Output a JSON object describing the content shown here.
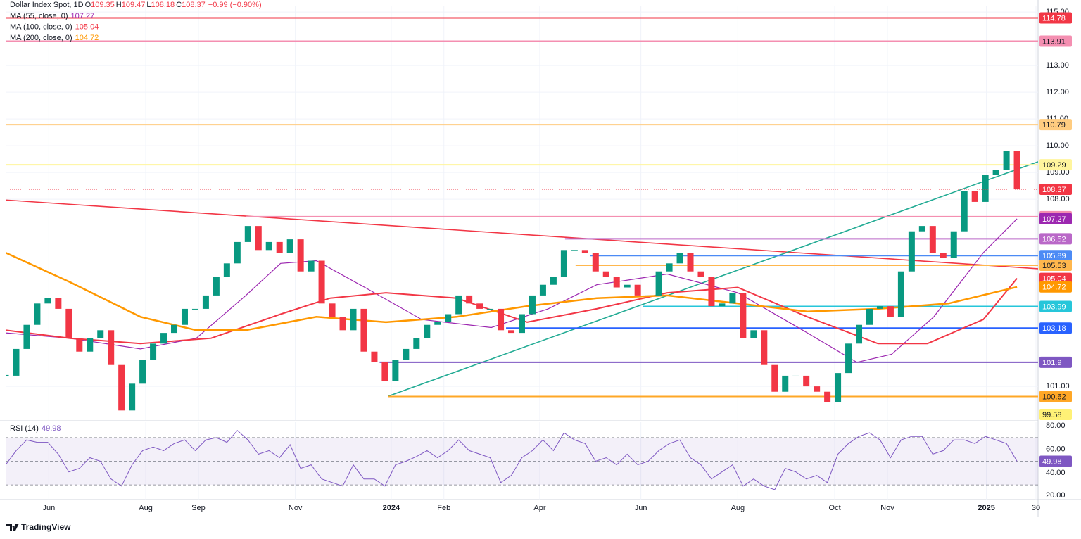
{
  "chart_data": [
    {
      "type": "line",
      "title": "Dollar Index Spot, 1D",
      "ohlc_labels": [
        "O",
        "H",
        "L",
        "C"
      ],
      "ohlc": [
        109.35,
        109.47,
        108.18,
        108.37
      ],
      "change": "−0.99 (−0.90%)",
      "up_color": "#089981",
      "down_color": "#f23645",
      "grid": true,
      "xlim": [
        0,
        98
      ],
      "xticks": [
        {
          "value": 4.1,
          "label": "Jun"
        },
        {
          "value": 13.3,
          "label": "Aug"
        },
        {
          "value": 18.3,
          "label": "Sep"
        },
        {
          "value": 27.5,
          "label": "Nov"
        },
        {
          "value": 36.6,
          "label": "2024"
        },
        {
          "value": 41.6,
          "label": "Feb"
        },
        {
          "value": 50.7,
          "label": "Apr"
        },
        {
          "value": 60.3,
          "label": "Jun"
        },
        {
          "value": 69.5,
          "label": "Aug"
        },
        {
          "value": 78.7,
          "label": "Oct"
        },
        {
          "value": 83.7,
          "label": "Nov"
        },
        {
          "value": 93.1,
          "label": "2025"
        },
        {
          "value": 97.8,
          "label": "30"
        }
      ],
      "ylim": [
        99.74,
        115.24
      ],
      "yticks": [
        {
          "value": 115,
          "label": "115.00"
        },
        {
          "value": 113,
          "label": "113.00"
        },
        {
          "value": 112,
          "label": "112.00"
        },
        {
          "value": 111,
          "label": "111.00"
        },
        {
          "value": 110,
          "label": "110.00"
        },
        {
          "value": 109,
          "label": "109.00"
        },
        {
          "value": 108,
          "label": "108.00"
        },
        {
          "value": 101,
          "label": "101.00"
        }
      ],
      "values": [
        101.4,
        102.4,
        103.3,
        104.1,
        104.3,
        103.9,
        102.8,
        102.3,
        102.8,
        103.1,
        101.8,
        100.1,
        101.1,
        102.0,
        102.6,
        103.0,
        103.3,
        103.9,
        103.9,
        104.4,
        105.1,
        105.6,
        106.4,
        107.0,
        106.1,
        106.4,
        106.0,
        106.5,
        105.3,
        105.7,
        104.1,
        103.6,
        103.1,
        103.9,
        102.3,
        101.9,
        101.2,
        102.0,
        102.4,
        102.8,
        103.3,
        103.4,
        103.7,
        104.4,
        104.1,
        103.9,
        103.9,
        103.1,
        103.0,
        103.7,
        104.4,
        104.8,
        105.1,
        106.1,
        106.1,
        106.0,
        105.3,
        105.1,
        104.7,
        104.8,
        104.4,
        104.4,
        105.3,
        105.6,
        106.0,
        105.3,
        105.1,
        104.0,
        104.1,
        104.5,
        102.8,
        103.1,
        101.8,
        100.8,
        101.4,
        101.4,
        101.0,
        100.8,
        100.4,
        101.5,
        102.6,
        103.3,
        103.9,
        104.0,
        103.6,
        105.3,
        106.8,
        107.0,
        106.0,
        105.8,
        106.8,
        108.3,
        107.9,
        108.9,
        109.1,
        109.8,
        108.37
      ],
      "moving_averages": [
        {
          "name": "MA (55, close, 0)",
          "color": "#9c27b0",
          "x": [
            0,
            6.1,
            12.8,
            18.1,
            22.8,
            26.1,
            29.5,
            34.1,
            39.5,
            46.1,
            51.5,
            56.1,
            62.8,
            69.5,
            76.1,
            80.8,
            84.1,
            88.1,
            92.8,
            96
          ],
          "values": [
            103.0,
            102.8,
            102.4,
            102.8,
            104.4,
            105.6,
            105.7,
            104.7,
            103.5,
            103.2,
            103.9,
            104.8,
            105.2,
            104.5,
            103.0,
            101.9,
            102.2,
            103.6,
            106.0,
            107.27
          ]
        },
        {
          "name": "MA (100, close, 0)",
          "color": "#f23645",
          "x": [
            0,
            6.1,
            12.8,
            19.5,
            26.1,
            30.8,
            36.1,
            42.8,
            49.5,
            56.1,
            62.8,
            69.5,
            76.1,
            82.8,
            87.5,
            92.8,
            96
          ],
          "values": [
            103.1,
            102.8,
            102.6,
            102.8,
            103.7,
            104.3,
            104.5,
            104.3,
            103.4,
            103.9,
            104.5,
            104.7,
            103.6,
            102.6,
            102.6,
            103.5,
            105.04
          ]
        },
        {
          "name": "MA (200, close, 0)",
          "color": "#ff9800",
          "x": [
            0,
            6.1,
            12.8,
            18.1,
            22.8,
            29.5,
            36.1,
            42.8,
            49.5,
            56.1,
            62.8,
            69.5,
            76.1,
            82.8,
            89.5,
            96
          ],
          "values": [
            106.0,
            104.9,
            103.6,
            103.1,
            103.1,
            103.6,
            103.4,
            103.6,
            104.0,
            104.3,
            104.4,
            104.1,
            103.8,
            103.9,
            104.1,
            104.72
          ]
        }
      ],
      "levels": [
        {
          "value": 114.78,
          "color": "#f23645",
          "x_from": 0
        },
        {
          "value": 113.91,
          "color": "#f48fb1",
          "x_from": 0
        },
        {
          "value": 110.79,
          "color": "#ffcc80",
          "x_from": 0
        },
        {
          "value": 109.29,
          "color": "#fff59d",
          "x_from": 0
        },
        {
          "value": 107.35,
          "color": "#f48fb1",
          "x_from": 22.8
        },
        {
          "value": 106.52,
          "color": "#ba68c8",
          "x_from": 53.1
        },
        {
          "value": 105.89,
          "color": "#4c8bf5",
          "x_from": 55.5
        },
        {
          "value": 105.53,
          "color": "#ffb74d",
          "x_from": 54.1
        },
        {
          "value": 103.99,
          "color": "#26c6da",
          "x_from": 60.5
        },
        {
          "value": 103.18,
          "color": "#2962ff",
          "x_from": 47.5
        },
        {
          "value": 101.9,
          "color": "#7e57c2",
          "x_from": 35.5
        },
        {
          "value": 100.62,
          "color": "#ffa726",
          "x_from": 36.3
        },
        {
          "value": 99.58,
          "color": "#fff176",
          "x_from": 0
        }
      ],
      "trendlines": [
        {
          "color": "#f23645",
          "x": [
            0,
            98
          ],
          "values": [
            107.97,
            105.4
          ]
        },
        {
          "color": "#22ab94",
          "x": [
            36.3,
            98
          ],
          "values": [
            100.63,
            109.4
          ]
        }
      ]
    },
    {
      "type": "line",
      "title": "RSI (14)",
      "color": "#7e57c2",
      "ylim": [
        17.6,
        83
      ],
      "yticks": [
        {
          "value": 80,
          "label": "80.00"
        },
        {
          "value": 60,
          "label": "60.00"
        },
        {
          "value": 40,
          "label": "40.00"
        },
        {
          "value": 20,
          "label": "20.00"
        }
      ],
      "levels": [
        70,
        50,
        30
      ],
      "band": [
        30,
        70
      ],
      "values": [
        47,
        59,
        68,
        66,
        66,
        56,
        41,
        44,
        53,
        50,
        35,
        29,
        47,
        59,
        62,
        59,
        65,
        68,
        59,
        68,
        70,
        66,
        76,
        68,
        56,
        59,
        53,
        64,
        44,
        47,
        35,
        32,
        29,
        47,
        35,
        35,
        29,
        47,
        50,
        54,
        59,
        53,
        59,
        68,
        59,
        56,
        53,
        32,
        38,
        53,
        59,
        68,
        59,
        74,
        68,
        65,
        50,
        53,
        47,
        56,
        47,
        50,
        59,
        65,
        68,
        53,
        47,
        35,
        41,
        47,
        29,
        35,
        29,
        26,
        44,
        41,
        35,
        38,
        32,
        56,
        65,
        71,
        74,
        68,
        53,
        68,
        71,
        71,
        56,
        59,
        68,
        68,
        65,
        71,
        68,
        65,
        49.98
      ]
    }
  ],
  "branding": "TradingView"
}
